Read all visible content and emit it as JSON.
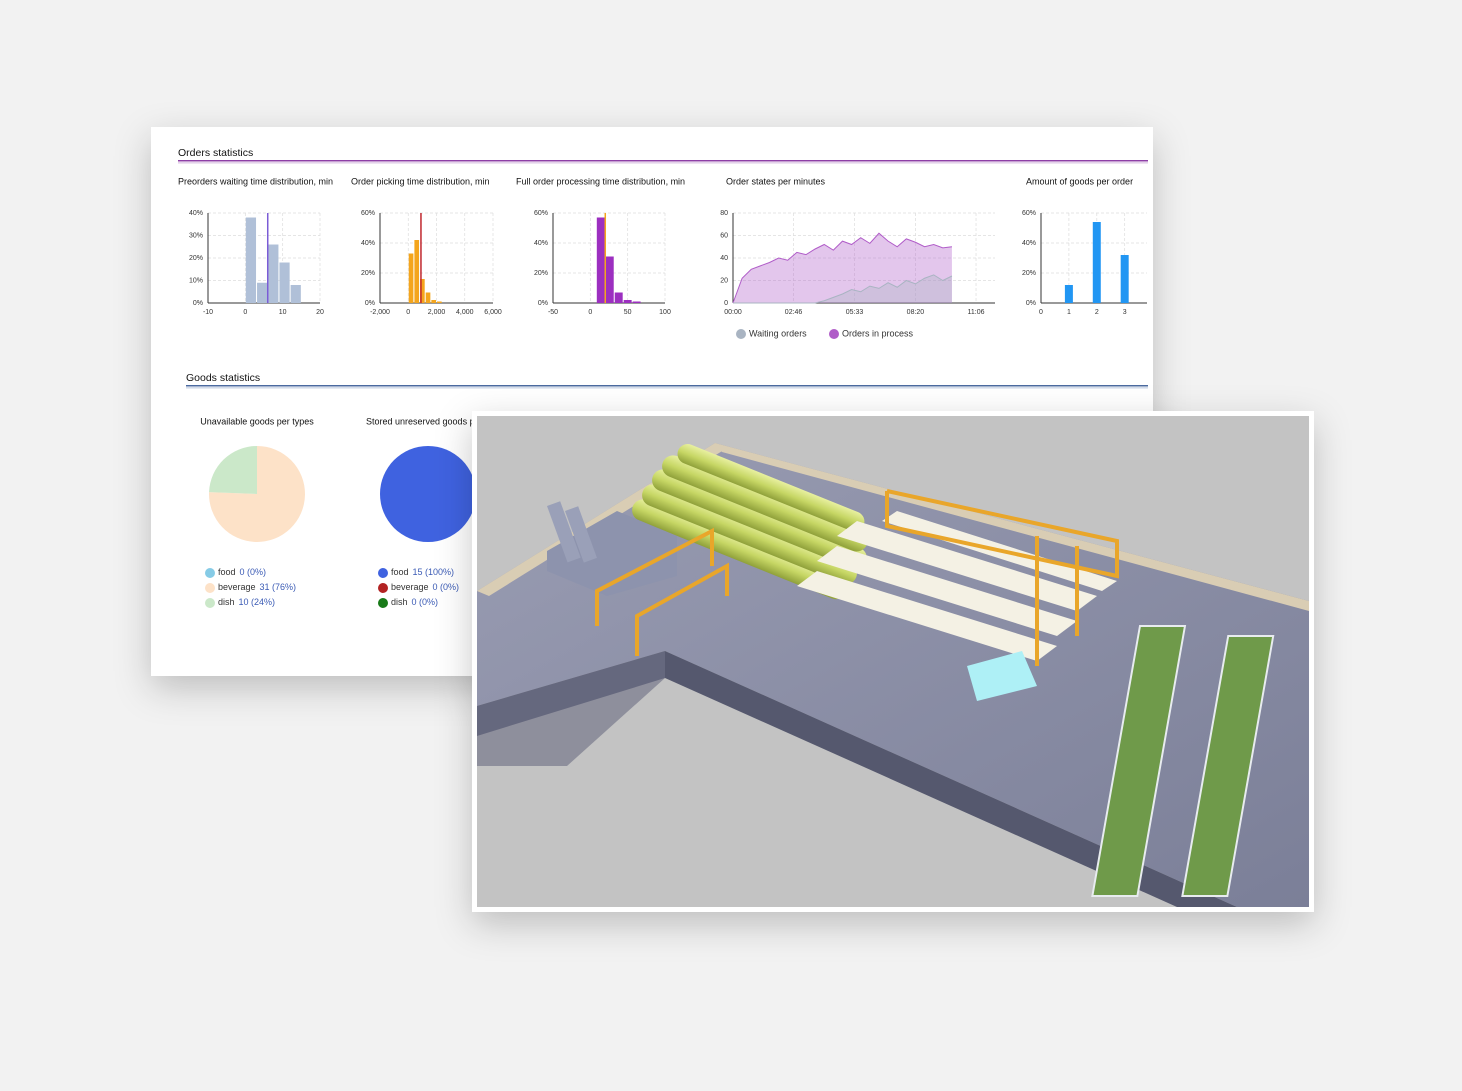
{
  "sections": [
    "Orders statistics",
    "Goods statistics"
  ],
  "chart_data": [
    {
      "type": "histogram",
      "title": "Preorders waiting time distribution, min",
      "bins": [
        0,
        3,
        6,
        9,
        12,
        15
      ],
      "values": [
        38,
        9,
        26,
        18,
        8
      ],
      "color": "#b0c0d8",
      "xlim": [
        -10,
        20
      ],
      "xticks": [
        -10,
        0,
        10,
        20
      ],
      "ylim": [
        0,
        40
      ],
      "yticks": [
        {
          "value": 0,
          "label": "0%"
        },
        {
          "value": 10,
          "label": "10%"
        },
        {
          "value": 20,
          "label": "20%"
        },
        {
          "value": 30,
          "label": "30%"
        },
        {
          "value": 40,
          "label": "40%"
        }
      ],
      "vlines": [
        {
          "x": 6,
          "color": "#7b5cd6"
        }
      ],
      "grid": true
    },
    {
      "type": "histogram",
      "title": "Order picking time distribution, min",
      "bins": [
        0,
        400,
        800,
        1200,
        1600,
        2000,
        2400
      ],
      "values": [
        33,
        42,
        16,
        7,
        2,
        1
      ],
      "color": "#f4a51c",
      "xlim": [
        -2000,
        6000
      ],
      "xticks": [
        {
          "value": -2000,
          "label": "-2,000"
        },
        0,
        {
          "value": 2000,
          "label": "2,000"
        },
        {
          "value": 4000,
          "label": "4,000"
        },
        {
          "value": 6000,
          "label": "6,000"
        }
      ],
      "ylim": [
        0,
        60
      ],
      "yticks": [
        {
          "value": 0,
          "label": "0%"
        },
        {
          "value": 20,
          "label": "20%"
        },
        {
          "value": 40,
          "label": "40%"
        },
        {
          "value": 60,
          "label": "60%"
        }
      ],
      "vlines": [
        {
          "x": 900,
          "color": "#c0272d"
        }
      ],
      "grid": true
    },
    {
      "type": "histogram",
      "title": "Full order processing time distribution, min",
      "bins": [
        8,
        20,
        32,
        44,
        56,
        68
      ],
      "values": [
        57,
        31,
        7,
        2,
        1
      ],
      "color": "#9c2fc0",
      "xlim": [
        -50,
        100
      ],
      "xticks": [
        -50,
        0,
        50,
        100
      ],
      "ylim": [
        0,
        60
      ],
      "yticks": [
        {
          "value": 0,
          "label": "0%"
        },
        {
          "value": 20,
          "label": "20%"
        },
        {
          "value": 40,
          "label": "40%"
        },
        {
          "value": 60,
          "label": "60%"
        }
      ],
      "vlines": [
        {
          "x": 20,
          "color": "#f4a51c"
        }
      ],
      "grid": true
    },
    {
      "type": "area",
      "title": "Order states per minutes",
      "x": [
        0,
        25,
        50,
        75,
        100,
        125,
        150,
        175,
        200,
        225,
        250,
        275,
        300,
        325,
        350,
        375,
        400,
        425,
        450,
        475,
        500,
        525,
        550,
        575,
        600
      ],
      "series": [
        {
          "name": "Waiting orders",
          "color": "#a9b4c2",
          "values": [
            0,
            0,
            0,
            0,
            0,
            0,
            0,
            0,
            0,
            0,
            2,
            5,
            8,
            12,
            10,
            15,
            13,
            18,
            14,
            20,
            17,
            22,
            25,
            20,
            24
          ]
        },
        {
          "name": "Orders in process",
          "color": "#b05cc8",
          "values": [
            0,
            22,
            30,
            33,
            36,
            40,
            38,
            45,
            43,
            48,
            52,
            47,
            55,
            52,
            58,
            53,
            62,
            55,
            50,
            57,
            54,
            50,
            52,
            49,
            50
          ]
        }
      ],
      "xlim": [
        0,
        718
      ],
      "xticks": [
        {
          "value": 0,
          "label": "00:00"
        },
        {
          "value": 166,
          "label": "02:46"
        },
        {
          "value": 333,
          "label": "05:33"
        },
        {
          "value": 500,
          "label": "08:20"
        },
        {
          "value": 666,
          "label": "11:06"
        }
      ],
      "ylim": [
        0,
        80
      ],
      "yticks": [
        0,
        20,
        40,
        60,
        80
      ],
      "grid": true,
      "legend": "bottom"
    },
    {
      "type": "bar",
      "title": "Amount of goods per order",
      "x": [
        1,
        2,
        3
      ],
      "values": [
        12,
        54,
        32
      ],
      "color": "#2196f3",
      "xlim": [
        0,
        3.8
      ],
      "xticks": [
        0,
        1,
        2,
        3
      ],
      "ylim": [
        0,
        60
      ],
      "yticks": [
        {
          "value": 0,
          "label": "0%"
        },
        {
          "value": 20,
          "label": "20%"
        },
        {
          "value": 40,
          "label": "40%"
        },
        {
          "value": 60,
          "label": "60%"
        }
      ],
      "grid": true
    },
    {
      "type": "pie",
      "title": "Unavailable goods per types",
      "categories": [
        "food",
        "beverage",
        "dish"
      ],
      "values": [
        0,
        31,
        10
      ],
      "value_labels": [
        "0 (0%)",
        "31 (76%)",
        "10 (24%)"
      ],
      "colors": [
        "#86cbe6",
        "#fde2c8",
        "#cbe8c9"
      ]
    },
    {
      "type": "pie",
      "title": "Stored unreserved goods per types",
      "categories": [
        "food",
        "beverage",
        "dish"
      ],
      "values": [
        15,
        0,
        0
      ],
      "value_labels": [
        "15 (100%)",
        "0 (0%)",
        "0 (0%)"
      ],
      "colors": [
        "#3f62e0",
        "#b22222",
        "#187a18"
      ]
    }
  ]
}
